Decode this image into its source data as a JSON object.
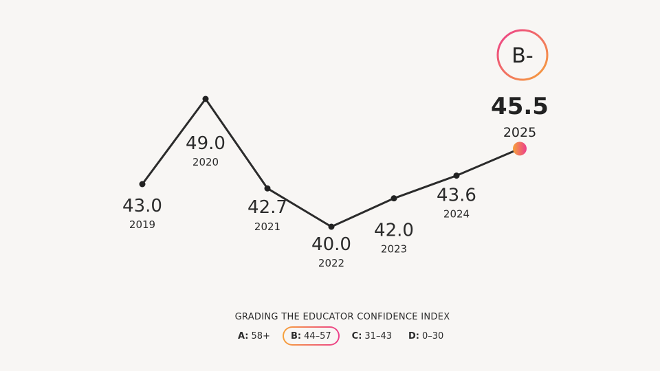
{
  "chart_data": {
    "type": "line",
    "x": [
      "2019",
      "2020",
      "2021",
      "2022",
      "2023",
      "2024",
      "2025"
    ],
    "series": [
      {
        "values": [
          43.0,
          49.0,
          42.7,
          40.0,
          42.0,
          43.6,
          45.5
        ]
      }
    ],
    "value_labels": [
      "43.0",
      "49.0",
      "42.7",
      "40.0",
      "42.0",
      "43.6",
      "45.5"
    ],
    "ylim": [
      40.0,
      49.0
    ],
    "grid": false,
    "highlight_last": true,
    "grade_badge": "B-",
    "colors": {
      "line": "#2b2b2b",
      "accent_start": "#f6a23a",
      "accent_end": "#ec3f8c"
    }
  },
  "legend": {
    "title": "GRADING THE EDUCATOR CONFIDENCE INDEX",
    "items": [
      {
        "grade": "A:",
        "range": "58+",
        "active": false
      },
      {
        "grade": "B:",
        "range": "44–57",
        "active": true
      },
      {
        "grade": "C:",
        "range": "31–43",
        "active": false
      },
      {
        "grade": "D:",
        "range": "0–30",
        "active": false
      }
    ]
  }
}
